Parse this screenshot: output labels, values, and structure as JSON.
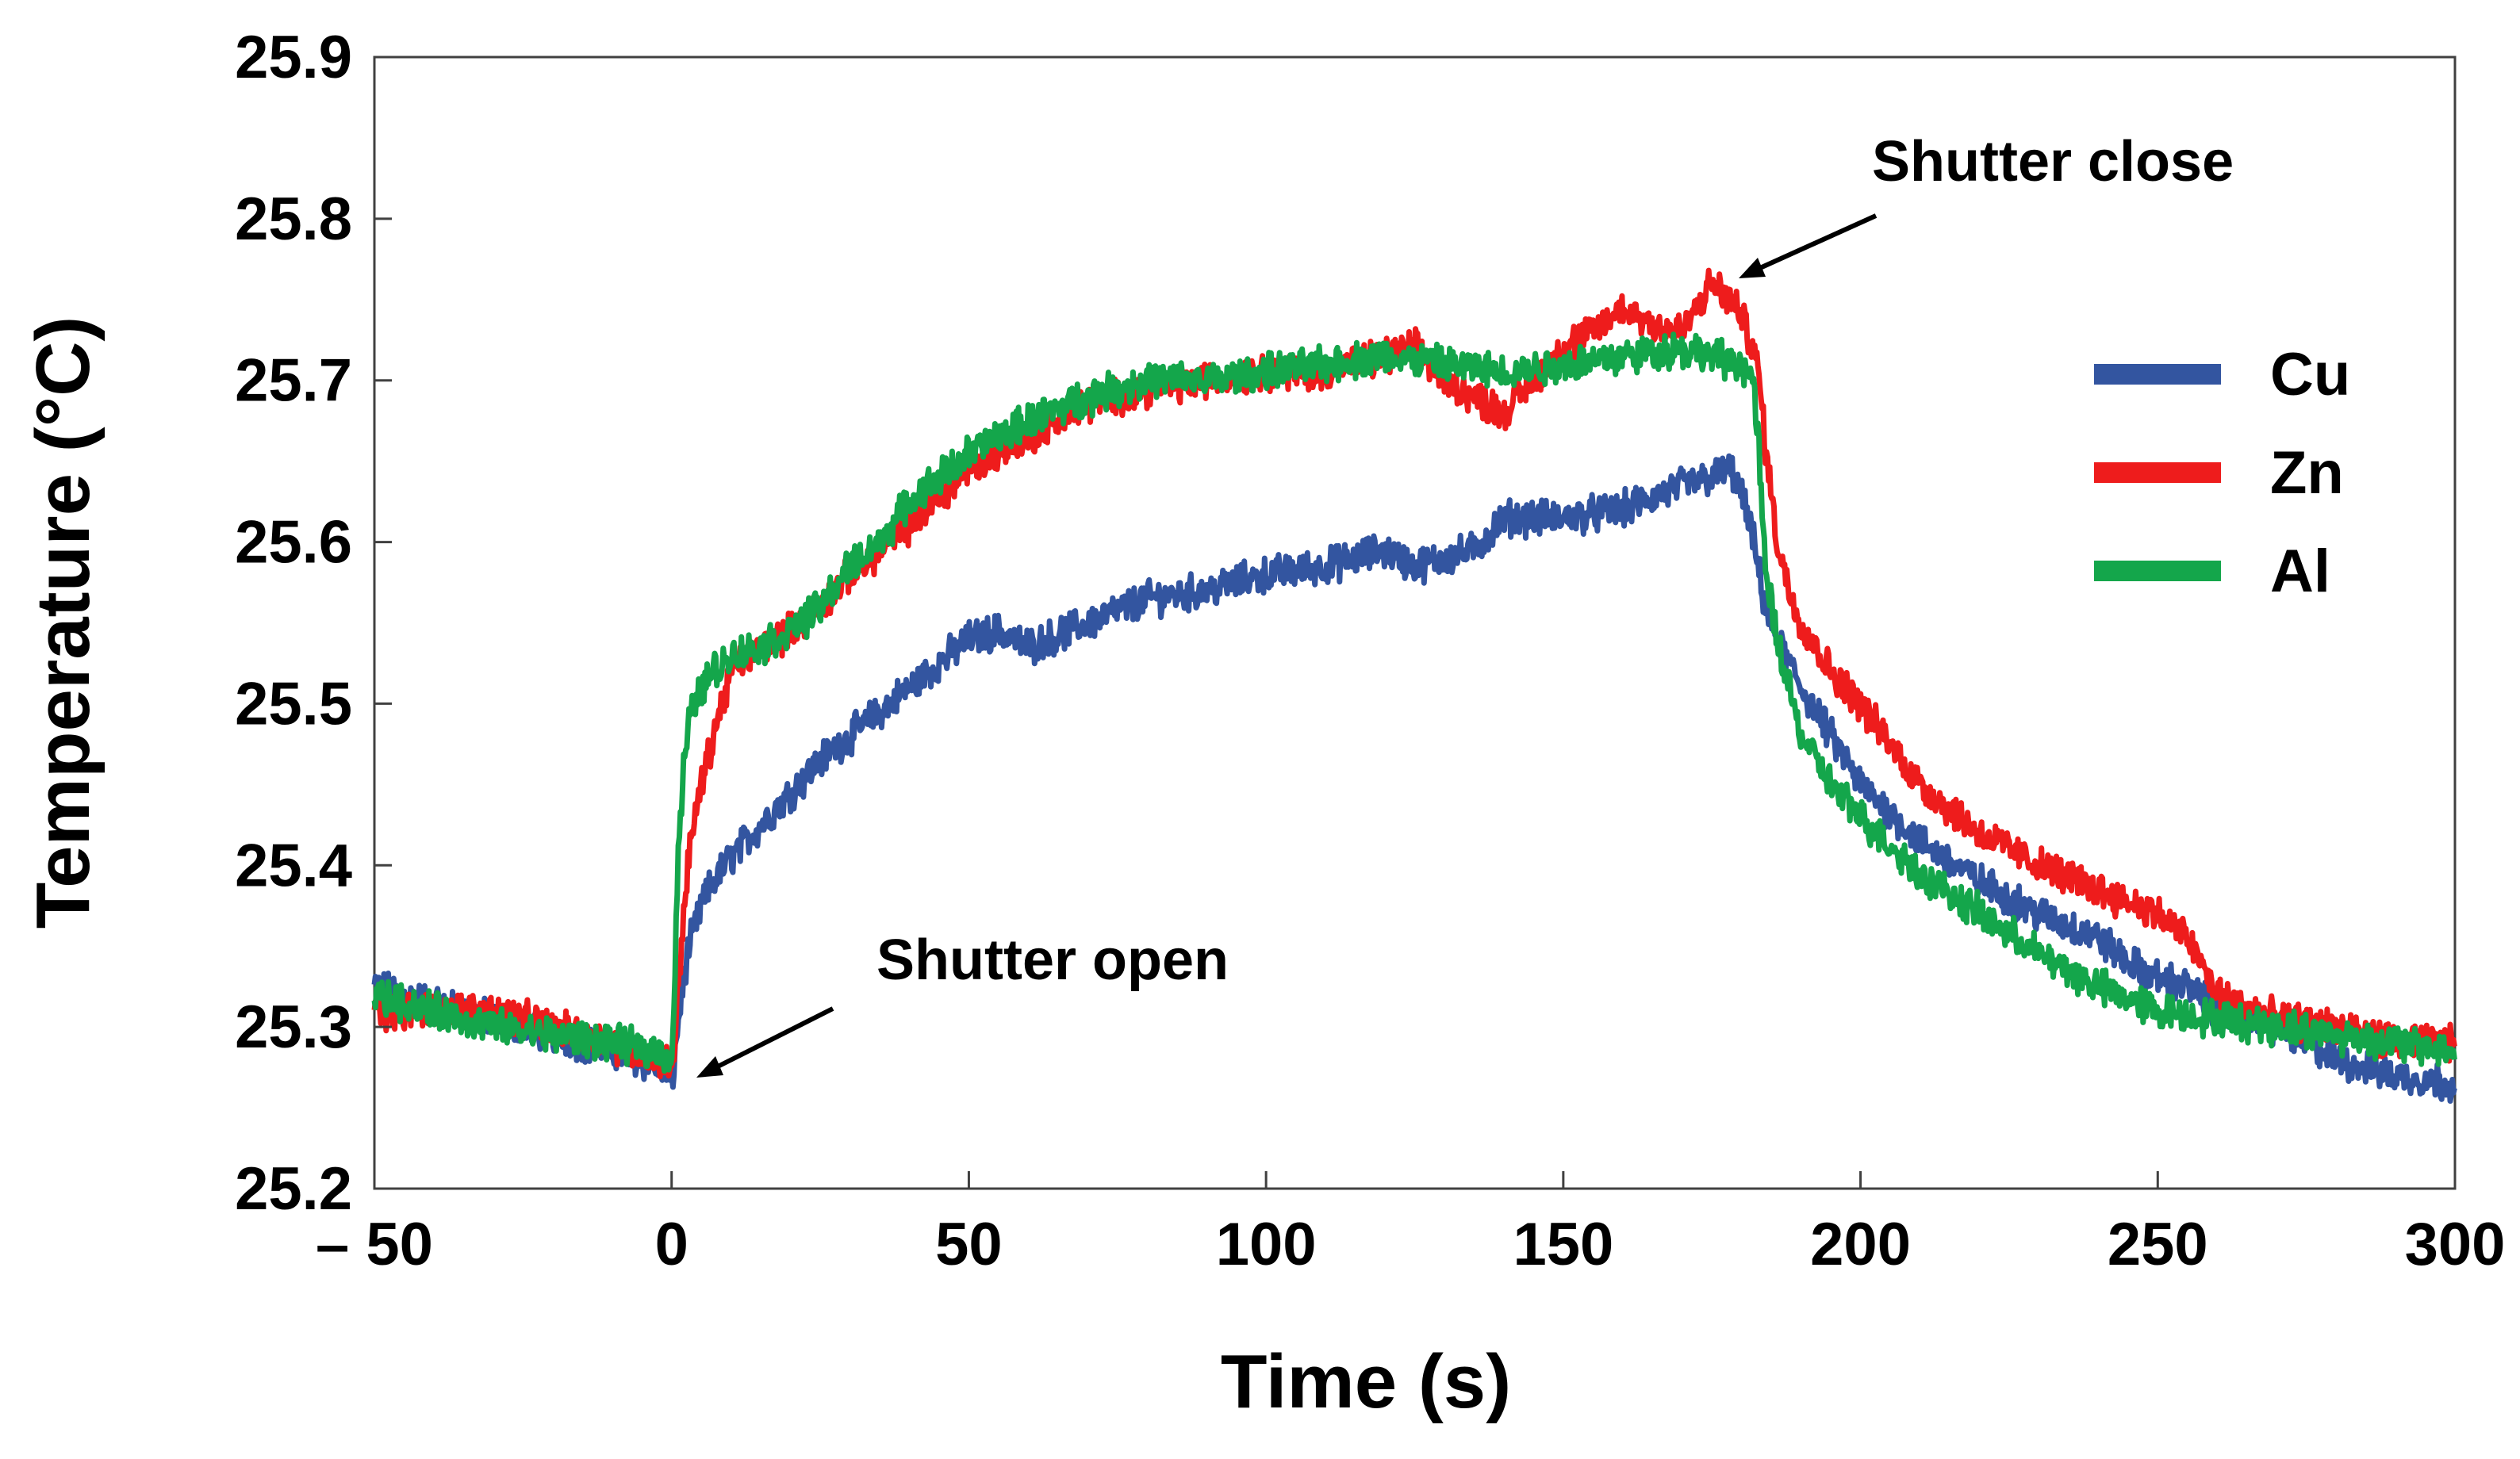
{
  "chart_data": {
    "type": "line",
    "title": "",
    "xlabel": "Time (s)",
    "ylabel": "Temperature (°C)",
    "xlim": [
      -50,
      300
    ],
    "ylim": [
      25.2,
      25.9
    ],
    "xticks": [
      -50,
      0,
      50,
      100,
      150,
      200,
      250,
      300
    ],
    "xtick_labels": [
      "– 50",
      "0",
      "50",
      "100",
      "150",
      "200",
      "250",
      "300"
    ],
    "yticks": [
      25.2,
      25.3,
      25.4,
      25.5,
      25.6,
      25.7,
      25.8,
      25.9
    ],
    "ytick_labels": [
      "25.2",
      "25.3",
      "25.4",
      "25.5",
      "25.6",
      "25.7",
      "25.8",
      "25.9"
    ],
    "grid": false,
    "legend_position": "right",
    "series": [
      {
        "name": "Cu",
        "color": "#3355A0",
        "x": [
          -50,
          -40,
          -30,
          -20,
          -10,
          -2,
          0,
          0.5,
          1,
          2,
          3,
          5,
          7,
          10,
          15,
          20,
          25,
          30,
          35,
          40,
          45,
          50,
          55,
          60,
          70,
          80,
          90,
          100,
          110,
          115,
          120,
          125,
          130,
          135,
          140,
          145,
          150,
          160,
          170,
          175,
          178,
          180,
          182,
          184,
          186,
          188,
          190,
          195,
          200,
          210,
          220,
          230,
          240,
          245,
          250,
          255,
          260,
          270,
          280,
          290,
          300
        ],
        "y": [
          25.325,
          25.315,
          25.305,
          25.295,
          25.285,
          25.275,
          25.265,
          25.28,
          25.3,
          25.33,
          25.35,
          25.375,
          25.39,
          25.405,
          25.425,
          25.445,
          25.465,
          25.48,
          25.495,
          25.51,
          25.525,
          25.54,
          25.545,
          25.535,
          25.55,
          25.565,
          25.57,
          25.58,
          25.585,
          25.59,
          25.595,
          25.585,
          25.59,
          25.595,
          25.615,
          25.615,
          25.615,
          25.62,
          25.635,
          25.64,
          25.645,
          25.63,
          25.6,
          25.56,
          25.54,
          25.525,
          25.51,
          25.48,
          25.45,
          25.415,
          25.39,
          25.37,
          25.355,
          25.34,
          25.33,
          25.325,
          25.31,
          25.3,
          25.28,
          25.27,
          25.265
        ]
      },
      {
        "name": "Zn",
        "color": "#EE1C1C",
        "x": [
          -50,
          -40,
          -30,
          -20,
          -10,
          -2,
          0,
          0.5,
          1,
          2,
          3,
          5,
          7,
          10,
          15,
          20,
          25,
          30,
          35,
          40,
          50,
          60,
          70,
          80,
          90,
          100,
          110,
          115,
          120,
          125,
          130,
          135,
          140,
          145,
          150,
          155,
          160,
          165,
          170,
          175,
          178,
          180,
          182,
          183,
          184,
          186,
          188,
          190,
          195,
          200,
          210,
          220,
          230,
          240,
          250,
          255,
          260,
          270,
          280,
          290,
          300
        ],
        "y": [
          25.31,
          25.31,
          25.31,
          25.3,
          25.29,
          25.28,
          25.275,
          25.29,
          25.32,
          25.37,
          25.41,
          25.45,
          25.48,
          25.52,
          25.535,
          25.545,
          25.56,
          25.58,
          25.595,
          25.61,
          25.645,
          25.665,
          25.685,
          25.695,
          25.7,
          25.705,
          25.705,
          25.71,
          25.715,
          25.72,
          25.7,
          25.69,
          25.68,
          25.7,
          25.72,
          25.73,
          25.745,
          25.735,
          25.73,
          25.76,
          25.75,
          25.74,
          25.72,
          25.7,
          25.66,
          25.6,
          25.57,
          25.55,
          25.52,
          25.5,
          25.45,
          25.42,
          25.4,
          25.385,
          25.37,
          25.355,
          25.32,
          25.305,
          25.3,
          25.29,
          25.29
        ]
      },
      {
        "name": "Al",
        "color": "#14A64B",
        "x": [
          -50,
          -40,
          -30,
          -20,
          -10,
          -2,
          0,
          0.5,
          1,
          2,
          3,
          5,
          7,
          10,
          15,
          20,
          25,
          30,
          35,
          40,
          50,
          60,
          70,
          80,
          90,
          100,
          110,
          120,
          130,
          140,
          150,
          160,
          170,
          175,
          180,
          182,
          183,
          184,
          186,
          188,
          190,
          195,
          200,
          210,
          220,
          230,
          240,
          250,
          260,
          270,
          280,
          290,
          300
        ],
        "y": [
          25.32,
          25.31,
          25.3,
          25.295,
          25.29,
          25.285,
          25.28,
          25.32,
          25.4,
          25.46,
          25.49,
          25.51,
          25.52,
          25.53,
          25.535,
          25.545,
          25.56,
          25.585,
          25.6,
          25.625,
          25.655,
          25.675,
          25.69,
          25.7,
          25.7,
          25.705,
          25.71,
          25.715,
          25.71,
          25.705,
          25.71,
          25.715,
          25.72,
          25.715,
          25.71,
          25.7,
          25.65,
          25.58,
          25.54,
          25.51,
          25.48,
          25.45,
          25.43,
          25.395,
          25.37,
          25.345,
          25.325,
          25.31,
          25.305,
          25.3,
          25.295,
          25.29,
          25.285
        ]
      }
    ],
    "annotations": [
      {
        "text": "Shutter open",
        "target_x": 1,
        "target_y": 25.27
      },
      {
        "text": "Shutter close",
        "target_x": 183,
        "target_y": 25.755
      }
    ]
  }
}
